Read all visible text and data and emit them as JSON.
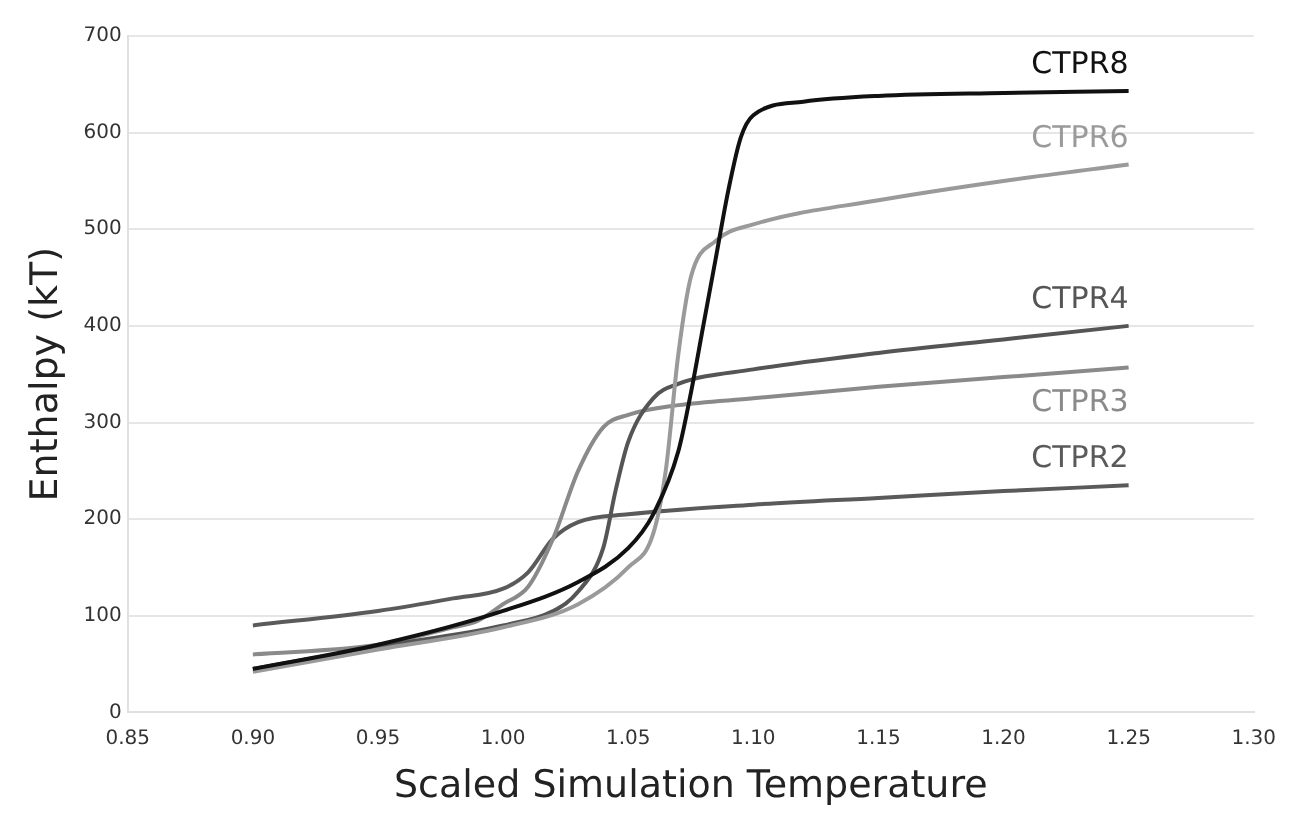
{
  "chart_data": {
    "type": "line",
    "xlabel": "Scaled Simulation Temperature",
    "ylabel": "Enthalpy (kT)",
    "xlim": [
      0.85,
      1.3
    ],
    "xticks": [
      {
        "value": 0.85,
        "label": "0.85"
      },
      {
        "value": 0.9,
        "label": "0.90"
      },
      {
        "value": 0.95,
        "label": "0.95"
      },
      {
        "value": 1.0,
        "label": "1.00"
      },
      {
        "value": 1.05,
        "label": "1.05"
      },
      {
        "value": 1.1,
        "label": "1.10"
      },
      {
        "value": 1.15,
        "label": "1.15"
      },
      {
        "value": 1.2,
        "label": "1.20"
      },
      {
        "value": 1.25,
        "label": "1.25"
      },
      {
        "value": 1.3,
        "label": "1.30"
      }
    ],
    "ylim": [
      0,
      700
    ],
    "yticks": [
      0,
      100,
      200,
      300,
      400,
      500,
      600,
      700
    ],
    "grid": "y",
    "legend": false,
    "series": [
      {
        "name": "CTPR8",
        "color": "#111111",
        "x": [
          0.9,
          0.95,
          1.0,
          1.03,
          1.05,
          1.06,
          1.07,
          1.075,
          1.08,
          1.085,
          1.09,
          1.095,
          1.1,
          1.12,
          1.15,
          1.2,
          1.25
        ],
        "values": [
          45,
          70,
          105,
          135,
          170,
          205,
          270,
          330,
          400,
          470,
          540,
          595,
          618,
          632,
          638,
          641,
          643
        ]
      },
      {
        "name": "CTPR6",
        "color": "#9a9a9a",
        "x": [
          0.9,
          0.95,
          1.0,
          1.03,
          1.05,
          1.06,
          1.065,
          1.07,
          1.075,
          1.085,
          1.1,
          1.15,
          1.2,
          1.25
        ],
        "values": [
          42,
          65,
          88,
          112,
          150,
          185,
          250,
          370,
          450,
          488,
          505,
          530,
          550,
          567
        ]
      },
      {
        "name": "CTPR4",
        "color": "#555555",
        "x": [
          0.9,
          0.95,
          1.0,
          1.02,
          1.03,
          1.04,
          1.045,
          1.05,
          1.06,
          1.07,
          1.1,
          1.15,
          1.2,
          1.25
        ],
        "values": [
          45,
          68,
          90,
          105,
          125,
          170,
          230,
          280,
          325,
          340,
          355,
          372,
          386,
          400
        ]
      },
      {
        "name": "CTPR3",
        "color": "#8a8a8a",
        "x": [
          0.9,
          0.95,
          0.98,
          0.99,
          1.0,
          1.01,
          1.02,
          1.03,
          1.04,
          1.05,
          1.07,
          1.1,
          1.15,
          1.2,
          1.25
        ],
        "values": [
          60,
          70,
          88,
          95,
          112,
          130,
          180,
          250,
          295,
          308,
          318,
          325,
          337,
          347,
          357
        ]
      },
      {
        "name": "CTPR2",
        "color": "#5a5a5a",
        "x": [
          0.9,
          0.95,
          0.98,
          1.0,
          1.01,
          1.02,
          1.03,
          1.05,
          1.1,
          1.15,
          1.2,
          1.25
        ],
        "values": [
          90,
          105,
          118,
          128,
          145,
          180,
          197,
          205,
          215,
          222,
          229,
          235
        ]
      }
    ]
  }
}
